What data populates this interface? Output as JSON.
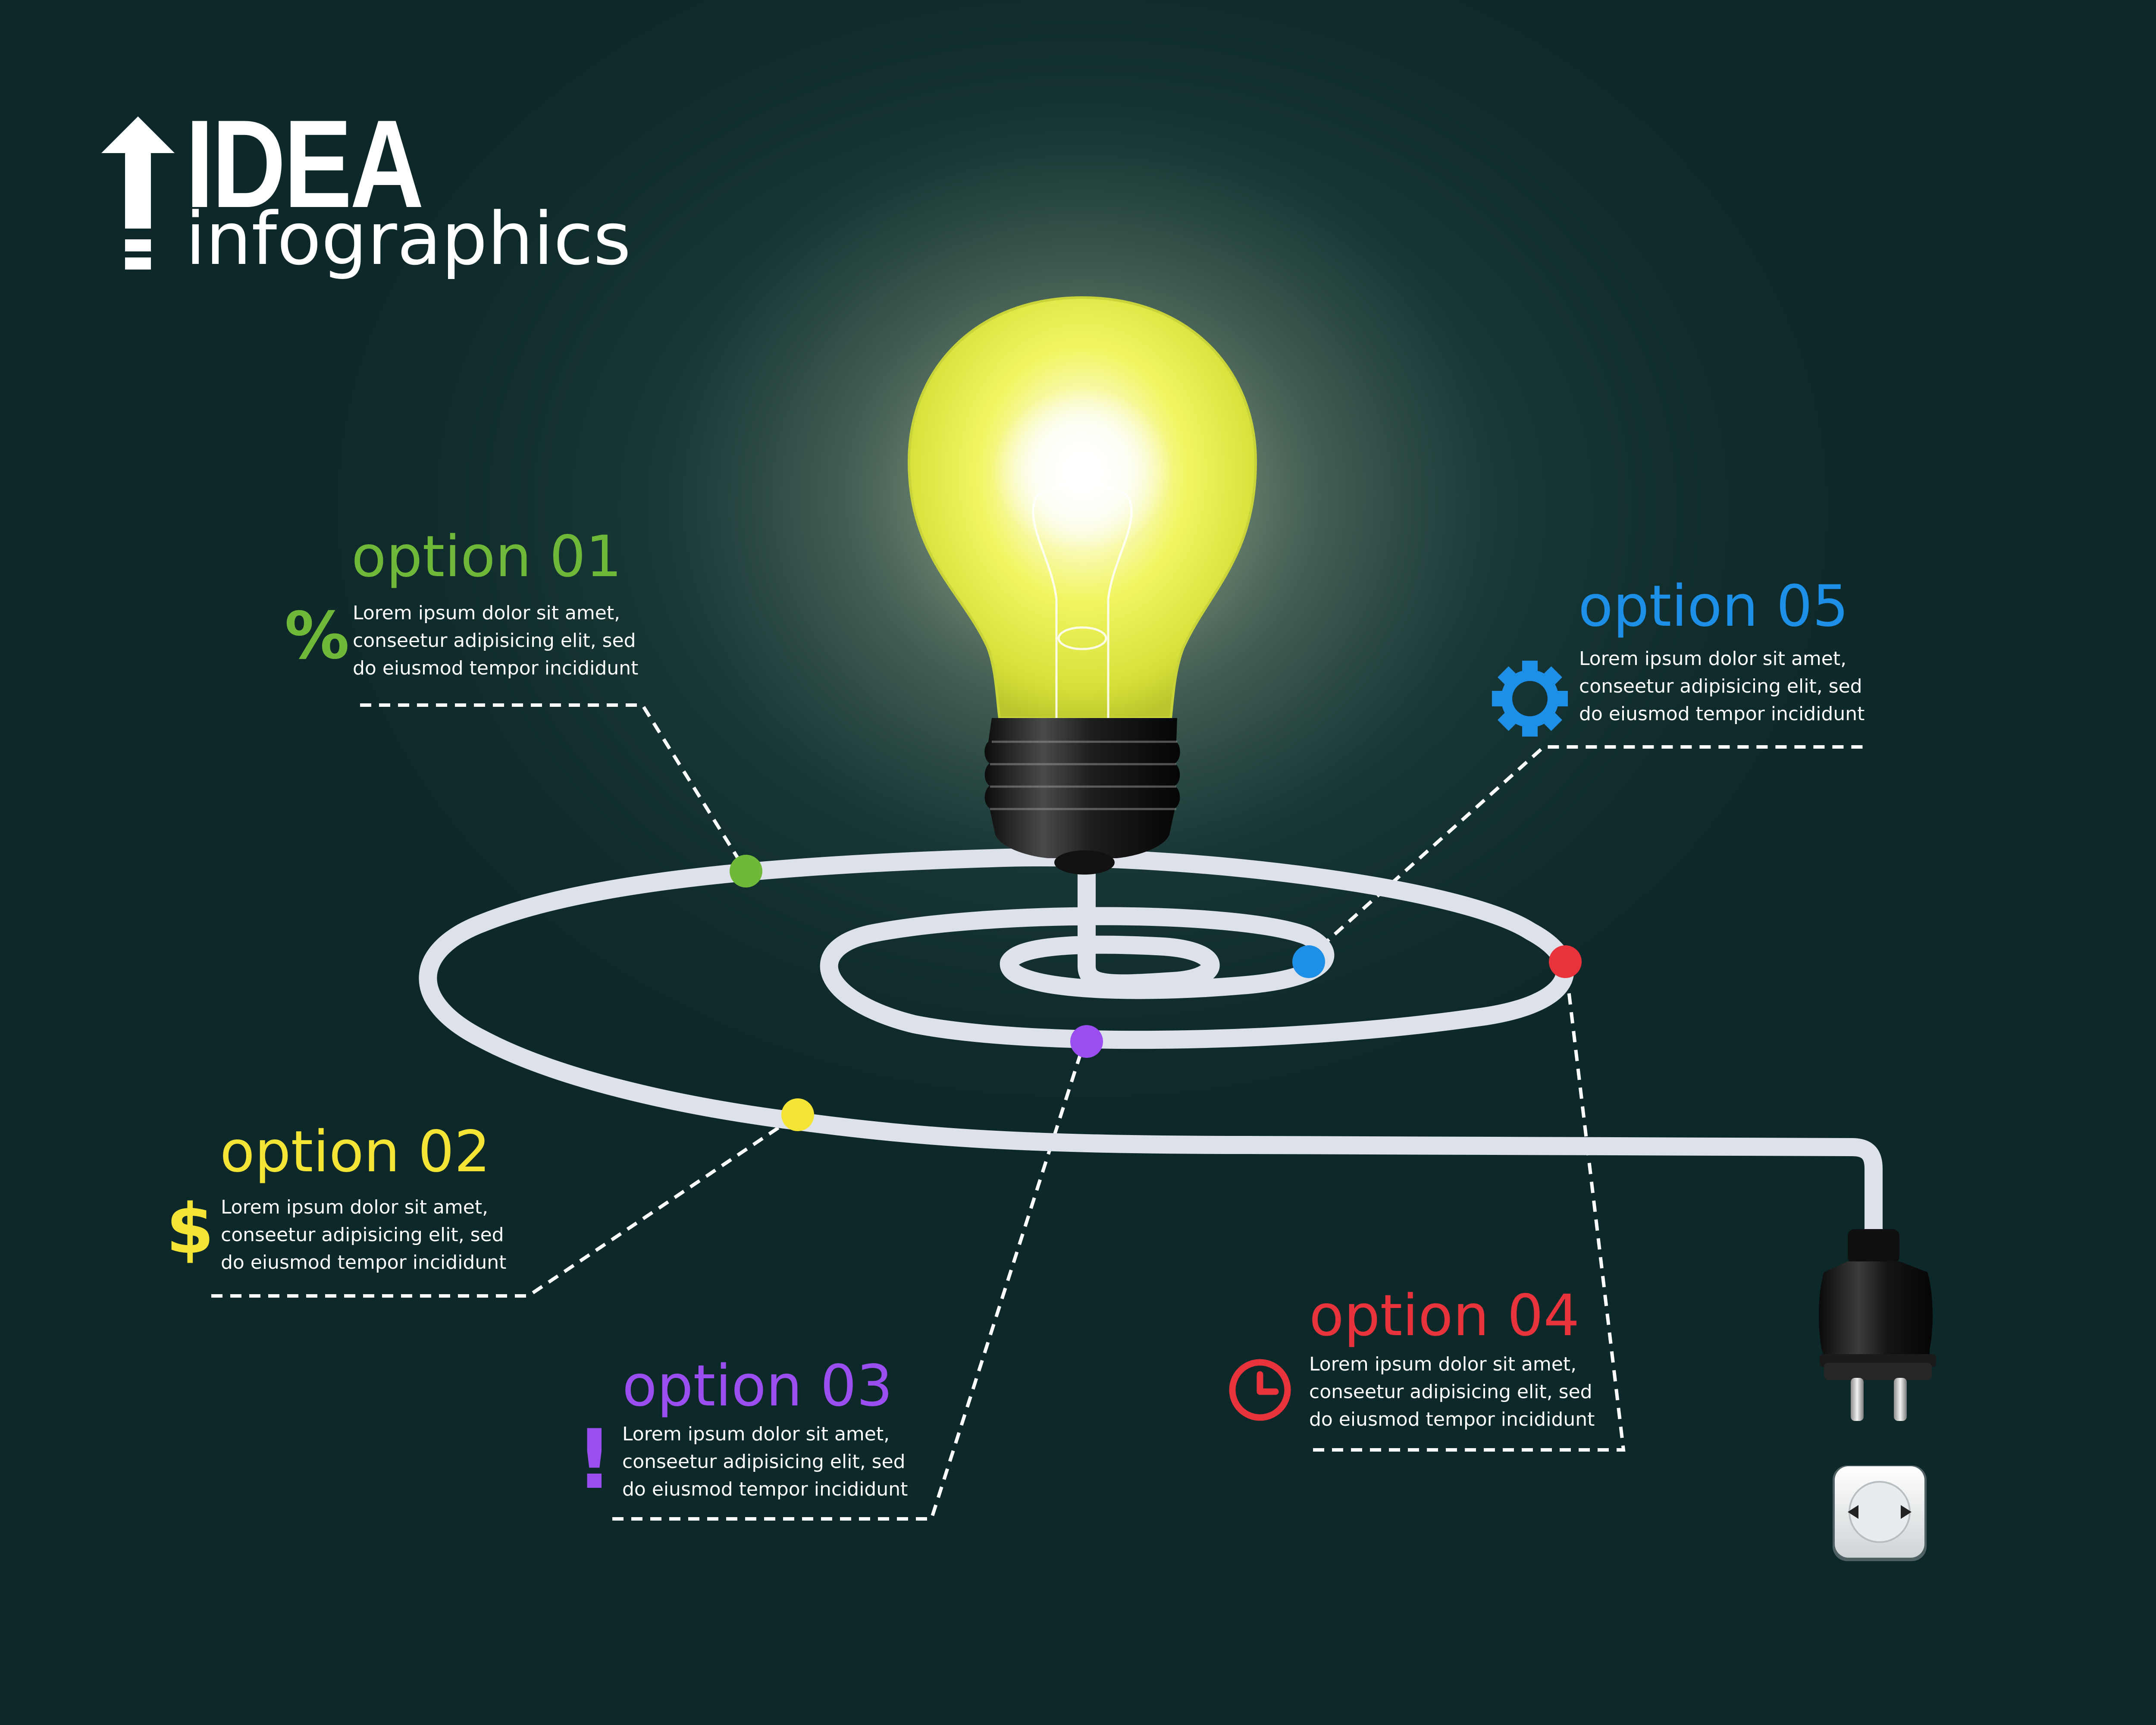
{
  "header": {
    "title": "IDEA",
    "subtitle": "infographics",
    "icon": "up-arrow-exclamation-icon"
  },
  "options": [
    {
      "id": "01",
      "title": "option 01",
      "lines": [
        "Lorem ipsum dolor sit amet,",
        "conseetur adipisicing elit, sed",
        "do eiusmod tempor incididunt"
      ],
      "icon": "percent-icon",
      "icon_glyph": "%",
      "color": "#6fb83a"
    },
    {
      "id": "02",
      "title": "option 02",
      "lines": [
        "Lorem ipsum dolor sit amet,",
        "conseetur adipisicing elit, sed",
        "do eiusmod tempor incididunt"
      ],
      "icon": "dollar-icon",
      "icon_glyph": "$",
      "color": "#f3e436"
    },
    {
      "id": "03",
      "title": "option 03",
      "lines": [
        "Lorem ipsum dolor sit amet,",
        "conseetur adipisicing elit, sed",
        "do eiusmod tempor incididunt"
      ],
      "icon": "exclamation-icon",
      "icon_glyph": "!",
      "color": "#9b4ef0"
    },
    {
      "id": "04",
      "title": "option 04",
      "lines": [
        "Lorem ipsum dolor sit amet,",
        "conseetur adipisicing elit, sed",
        "do eiusmod tempor incididunt"
      ],
      "icon": "clock-icon",
      "color": "#e8323c"
    },
    {
      "id": "05",
      "title": "option 05",
      "lines": [
        "Lorem ipsum dolor sit amet,",
        "conseetur adipisicing elit, sed",
        "do eiusmod tempor incididunt"
      ],
      "icon": "gear-icon",
      "color": "#1d8fe6"
    }
  ],
  "illustration": {
    "bulb": "light-bulb-icon",
    "plug": "power-plug-icon",
    "socket": "power-socket-icon",
    "bulb_color": "#f4f36a"
  }
}
